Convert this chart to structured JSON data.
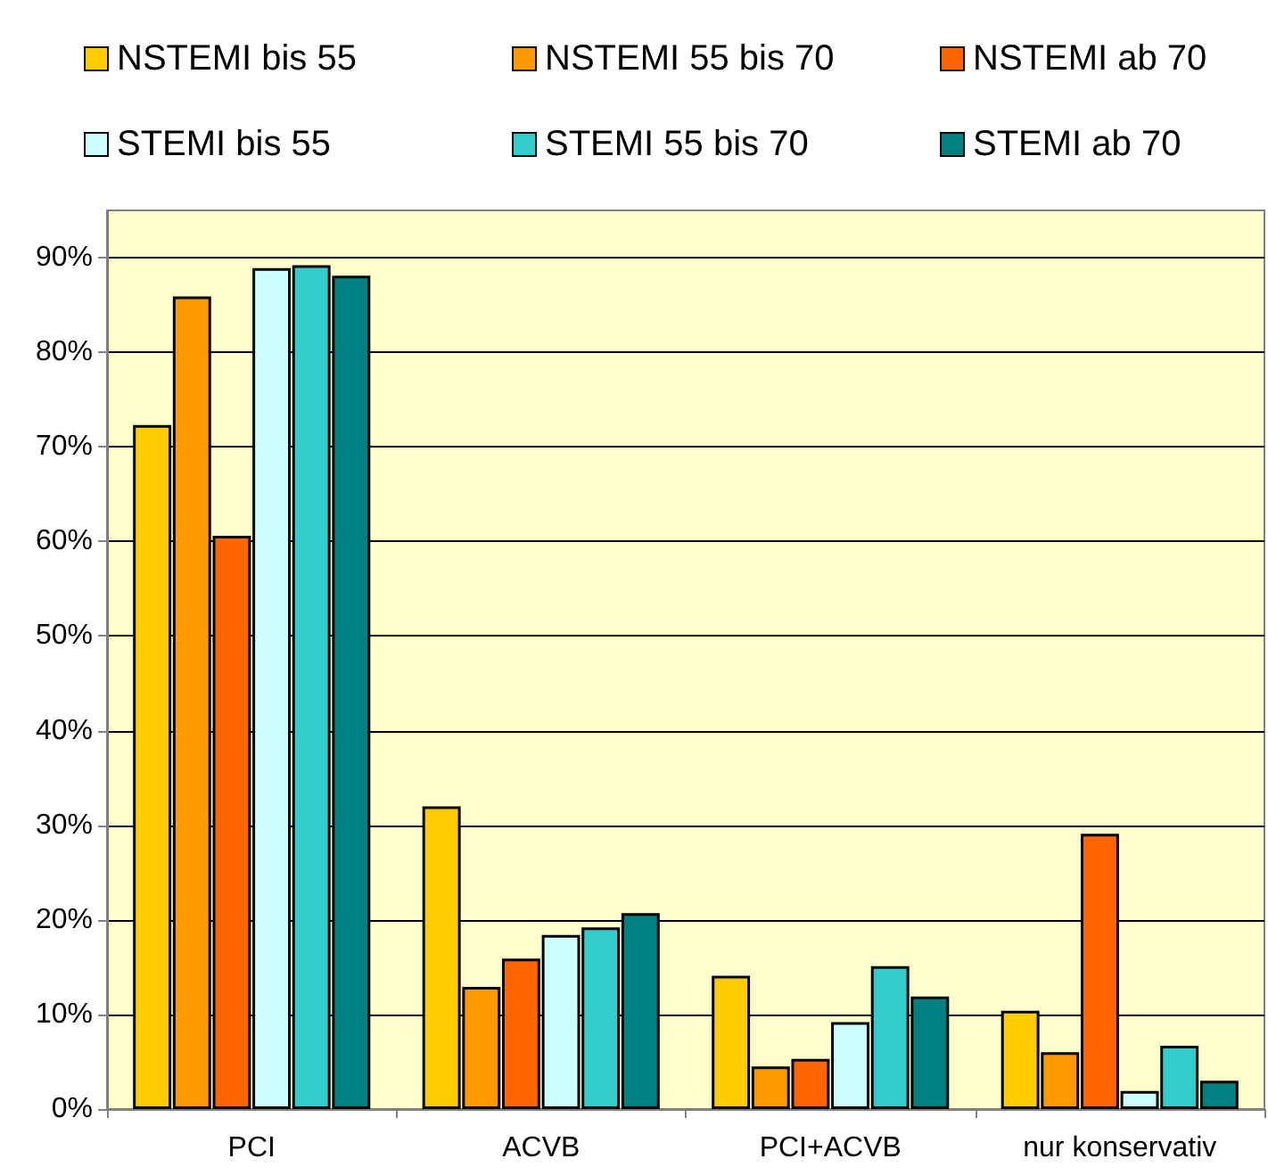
{
  "chart_data": {
    "type": "bar",
    "categories": [
      "PCI",
      "ACVB",
      "PCI+ACVB",
      "nur konservativ"
    ],
    "series": [
      {
        "name": "NSTEMI bis 55",
        "color": "#ffcc00",
        "values": [
          72.3,
          32.0,
          14.1,
          10.4
        ]
      },
      {
        "name": "NSTEMI 55 bis 70",
        "color": "#ff9900",
        "values": [
          85.9,
          12.9,
          4.5,
          6.0
        ]
      },
      {
        "name": "NSTEMI ab 70",
        "color": "#ff6600",
        "values": [
          60.6,
          15.9,
          5.3,
          29.1
        ]
      },
      {
        "name": "STEMI bis 55",
        "color": "#ccffff",
        "values": [
          88.9,
          18.4,
          9.2,
          1.9
        ]
      },
      {
        "name": "STEMI 55 bis 70",
        "color": "#33cccc",
        "values": [
          89.2,
          19.2,
          15.1,
          6.7
        ]
      },
      {
        "name": "STEMI ab 70",
        "color": "#008080",
        "values": [
          88.1,
          20.7,
          11.9,
          3.0
        ]
      }
    ],
    "ylim": [
      0,
      95
    ],
    "yticks": [
      {
        "value": 0,
        "label": "0%"
      },
      {
        "value": 10,
        "label": "10%"
      },
      {
        "value": 20,
        "label": "20%"
      },
      {
        "value": 30,
        "label": "30%"
      },
      {
        "value": 40,
        "label": "40%"
      },
      {
        "value": 50,
        "label": "50%"
      },
      {
        "value": 60,
        "label": "60%"
      },
      {
        "value": 70,
        "label": "70%"
      },
      {
        "value": 80,
        "label": "80%"
      },
      {
        "value": 90,
        "label": "90%"
      }
    ],
    "grid": "y",
    "legend": "top"
  }
}
